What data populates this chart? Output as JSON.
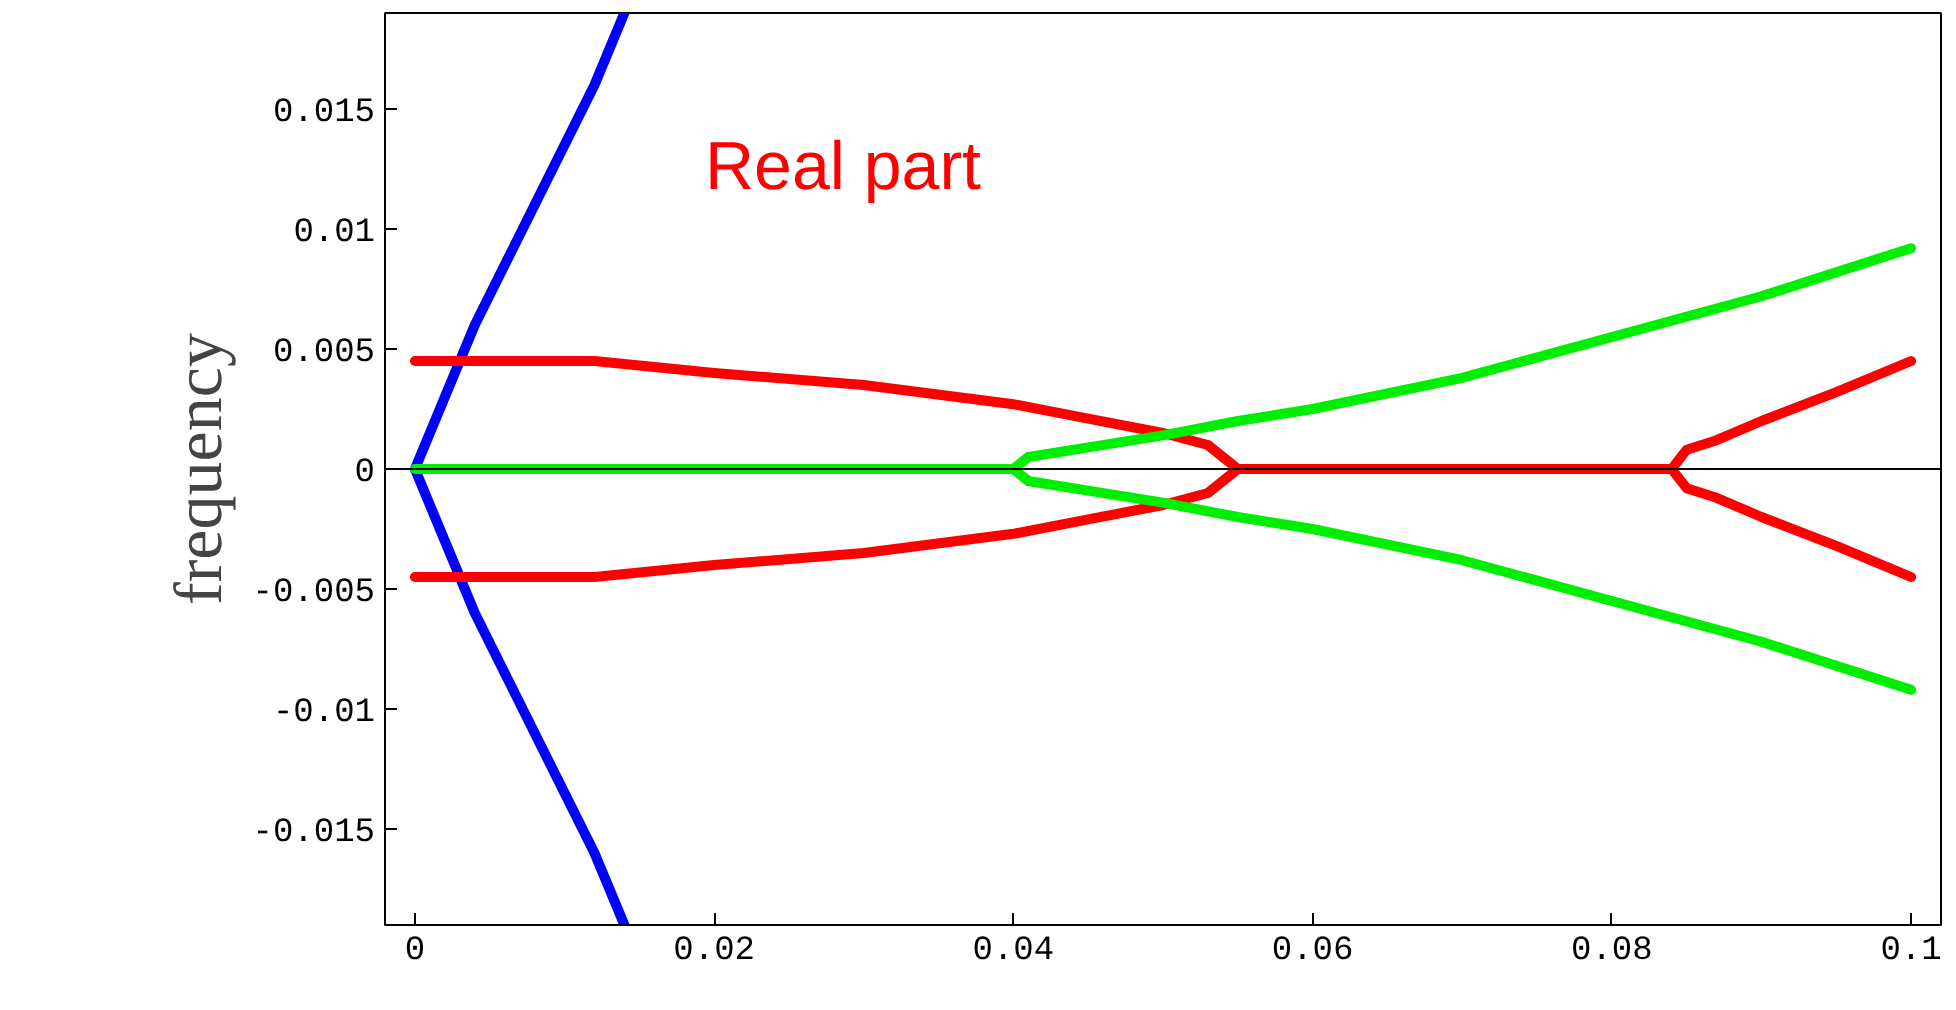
{
  "chart_data": {
    "type": "line",
    "ylabel": "frequency",
    "annotations": [
      "Real part"
    ],
    "xlim": [
      -0.002,
      0.102
    ],
    "ylim": [
      -0.019,
      0.019
    ],
    "xticks": [
      0,
      0.02,
      0.04,
      0.06,
      0.08,
      0.1
    ],
    "yticks": [
      -0.015,
      -0.01,
      -0.005,
      0,
      0.005,
      0.01,
      0.015
    ],
    "grid": false,
    "marker": "none",
    "line_style": "solid",
    "ref_lines": [
      {
        "axis": "y",
        "value": 0,
        "color": "#000000"
      }
    ],
    "series": [
      {
        "color": "#0000ff",
        "x": [
          0.014,
          0.012,
          0.01,
          0.008,
          0.006,
          0.004,
          0.002,
          0,
          0.002,
          0.004,
          0.006,
          0.008,
          0.01,
          0.012,
          0.014
        ],
        "values": [
          0.019,
          0.016,
          0.0135,
          0.011,
          0.0085,
          0.006,
          0.003,
          0,
          -0.003,
          -0.006,
          -0.0085,
          -0.011,
          -0.0135,
          -0.016,
          -0.019
        ]
      },
      {
        "color": "#ff0000",
        "x": [
          0,
          0.012,
          0.02,
          0.03,
          0.04,
          0.045,
          0.05,
          0.053,
          0.055,
          0.053,
          0.05,
          0.045,
          0.04,
          0.03,
          0.02,
          0.012,
          0
        ],
        "values": [
          0.0045,
          0.0045,
          0.004,
          0.0035,
          0.0027,
          0.0021,
          0.0015,
          0.001,
          0,
          -0.001,
          -0.0015,
          -0.0021,
          -0.0027,
          -0.0035,
          -0.004,
          -0.0045,
          -0.0045
        ]
      },
      {
        "color": "#ff0000",
        "x": [
          0.055,
          0.084,
          0.085,
          0.087,
          0.09,
          0.095,
          0.1
        ],
        "values": [
          0,
          0,
          0.0008,
          0.0012,
          0.002,
          0.0032,
          0.0045
        ]
      },
      {
        "color": "#ff0000",
        "x": [
          0.084,
          0.085,
          0.087,
          0.09,
          0.095,
          0.1
        ],
        "values": [
          0,
          -0.0008,
          -0.0012,
          -0.002,
          -0.0032,
          -0.0045
        ]
      },
      {
        "color": "#00ee00",
        "x": [
          0,
          0.04,
          0.041,
          0.045,
          0.05,
          0.055,
          0.06,
          0.07,
          0.08,
          0.09,
          0.1
        ],
        "values": [
          0,
          0,
          0.0005,
          0.0009,
          0.0014,
          0.002,
          0.0025,
          0.0038,
          0.0055,
          0.0072,
          0.0092
        ]
      },
      {
        "color": "#00ee00",
        "x": [
          0.04,
          0.041,
          0.045,
          0.05,
          0.055,
          0.06,
          0.07,
          0.08,
          0.09,
          0.1
        ],
        "values": [
          0,
          -0.0005,
          -0.0009,
          -0.0014,
          -0.002,
          -0.0025,
          -0.0038,
          -0.0055,
          -0.0072,
          -0.0092
        ]
      }
    ]
  }
}
